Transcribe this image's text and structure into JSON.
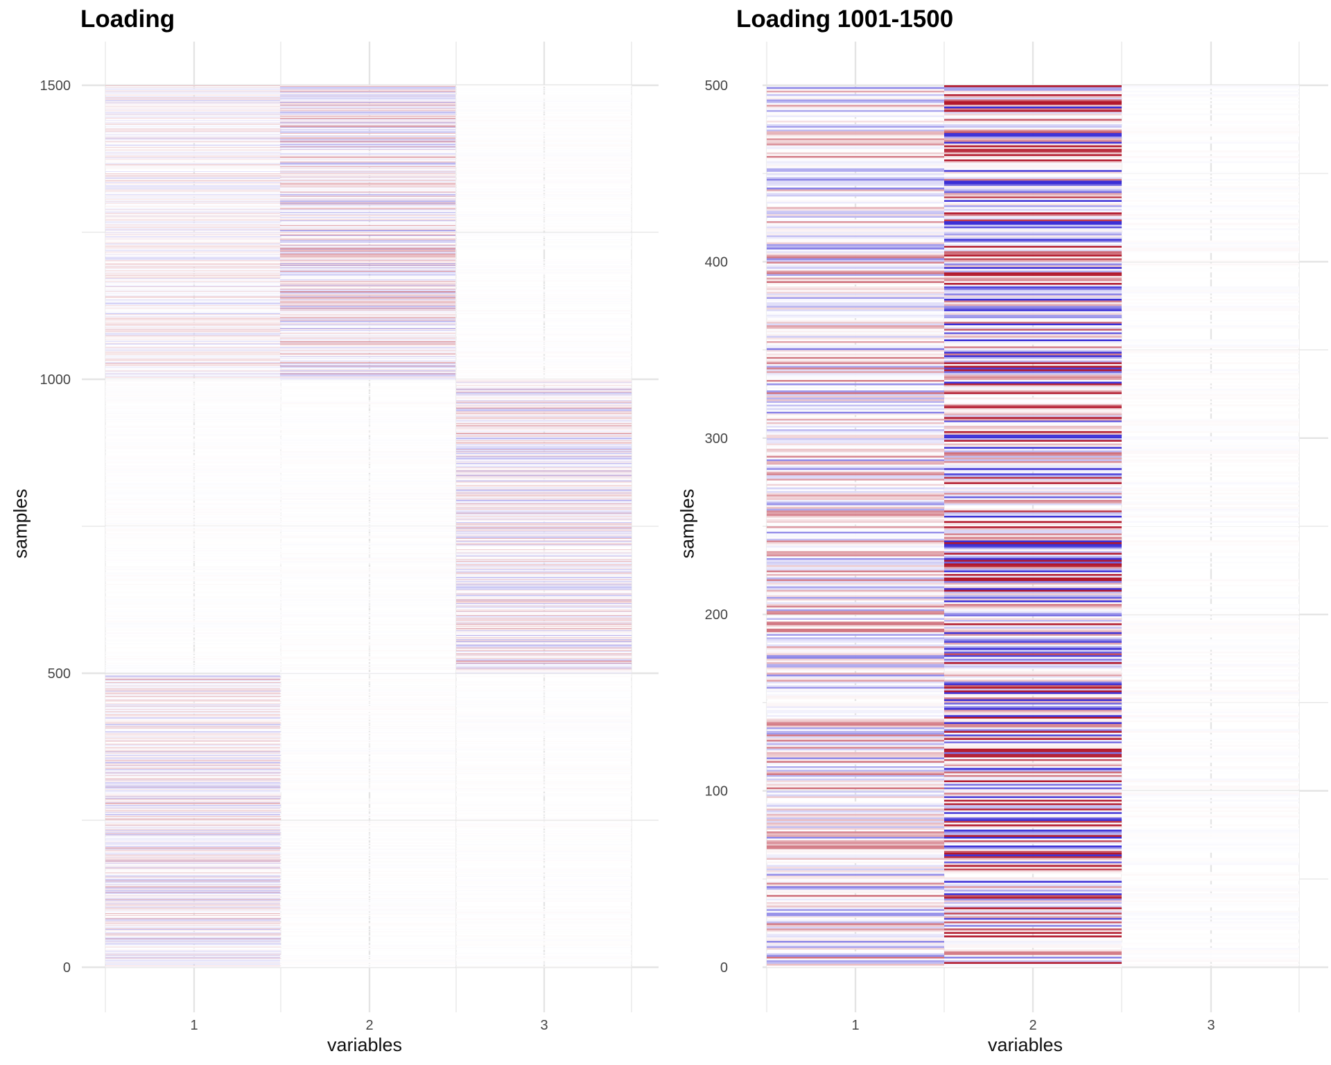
{
  "chart_data": [
    {
      "type": "heatmap",
      "title": "Loading",
      "xlabel": "variables",
      "ylabel": "samples",
      "x_categories": [
        "1",
        "2",
        "3"
      ],
      "x_ticks": [
        "1",
        "2",
        "3"
      ],
      "y_ticks": [
        "0",
        "500",
        "1000",
        "1500"
      ],
      "y_tick_values": [
        0,
        500,
        1000,
        1500
      ],
      "ylim": [
        0,
        1500
      ],
      "n_samples": 1500,
      "fill_scale": {
        "negative": "#3b2fd6",
        "zero": "#ffffff",
        "positive": "#b2182b",
        "limit": 1
      },
      "blocks": [
        {
          "variable": 1,
          "from": 1,
          "to": 500,
          "amplitude": 0.18
        },
        {
          "variable": 1,
          "from": 1001,
          "to": 1500,
          "amplitude": 0.12
        },
        {
          "variable": 2,
          "from": 1001,
          "to": 1500,
          "amplitude": 0.24
        },
        {
          "variable": 3,
          "from": 501,
          "to": 1000,
          "amplitude": 0.2
        }
      ],
      "background_amplitude": 0.012,
      "seed": 11
    },
    {
      "type": "heatmap",
      "title": "Loading 1001-1500",
      "xlabel": "variables",
      "ylabel": "samples",
      "x_categories": [
        "1",
        "2",
        "3"
      ],
      "x_ticks": [
        "1",
        "2",
        "3"
      ],
      "y_ticks": [
        "0",
        "100",
        "200",
        "300",
        "400",
        "500"
      ],
      "y_tick_values": [
        0,
        100,
        200,
        300,
        400,
        500
      ],
      "ylim": [
        0,
        500
      ],
      "n_samples": 500,
      "fill_scale": {
        "negative": "#3b2fd6",
        "zero": "#ffffff",
        "positive": "#b2182b",
        "limit": 1
      },
      "blocks": [
        {
          "variable": 1,
          "from": 1,
          "to": 500,
          "amplitude": 0.3
        },
        {
          "variable": 2,
          "from": 1,
          "to": 500,
          "amplitude": 0.75
        }
      ],
      "background_amplitude": 0.015,
      "seed": 29
    }
  ]
}
